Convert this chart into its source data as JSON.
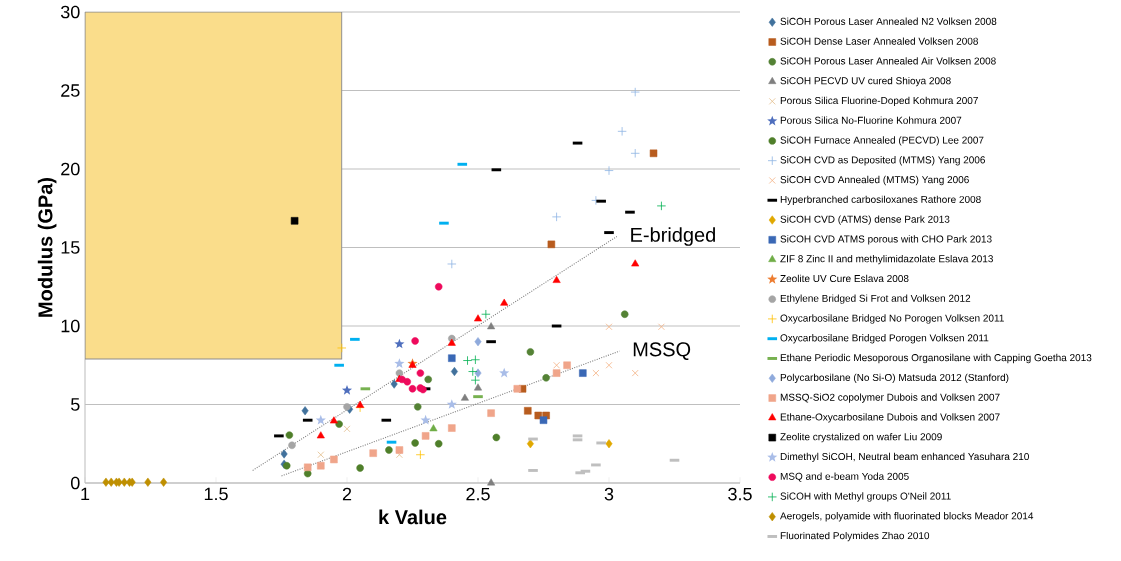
{
  "chart_data": {
    "type": "scatter",
    "xlabel": "k Value",
    "ylabel": "Modulus (GPa)",
    "xlim": [
      1,
      3.5
    ],
    "ylim": [
      0,
      30
    ],
    "xticks": [
      1,
      1.5,
      2,
      2.5,
      3,
      3.5
    ],
    "yticks": [
      0,
      5,
      10,
      15,
      20,
      25,
      30
    ],
    "grid": "y",
    "legend": "right",
    "annotations": [
      "E-bridged",
      "MSSQ"
    ],
    "series": [
      {
        "type": "bar",
        "color": "#fadd8b",
        "x": [
          1.49
        ],
        "values": [
          22.1
        ],
        "base": [
          7.9
        ]
      },
      {
        "name": "SiCOH Porous Laser Annealed N2 Volksen 2008",
        "color": "#41719c",
        "marker": "diamond",
        "x": [
          1.76,
          1.76,
          1.84,
          2.01,
          2.18,
          2.41
        ],
        "values": [
          1.2,
          1.85,
          4.6,
          4.7,
          6.3,
          7.1
        ]
      },
      {
        "name": "SiCOH Dense Laser Annealed Volksen 2008",
        "color": "#b85c1e",
        "marker": "square",
        "x": [
          2.67,
          2.69,
          2.73,
          2.76,
          2.78,
          3.17
        ],
        "values": [
          6.0,
          4.6,
          4.3,
          4.3,
          15.2,
          21
        ]
      },
      {
        "name": "SiCOH Porous Laser Annealed Air Volksen 2008",
        "color": "#548235",
        "marker": "circle",
        "x": [
          2.27,
          2.31,
          2.7,
          2.76,
          3.06
        ],
        "values": [
          4.85,
          6.6,
          8.35,
          6.7,
          10.75
        ]
      },
      {
        "name": "SiCOH PECVD UV cured Shioya 2008",
        "color": "#7f7f7f",
        "marker": "triangle",
        "x": [
          2.45,
          2.5,
          2.55,
          2.55
        ],
        "values": [
          5.4,
          6.05,
          9.95,
          0
        ]
      },
      {
        "name": "Porous Silica Fluorine-Doped Kohmura 2007",
        "color": "#e2bd8a",
        "marker": "cross",
        "x": [
          1.9,
          2.0,
          2.2
        ],
        "values": [
          1.8,
          3.45,
          1.8
        ]
      },
      {
        "name": "Porous Silica No-Fluorine Kohmura 2007",
        "color": "#4e6ebd",
        "marker": "star",
        "x": [
          2.0,
          2.2
        ],
        "values": [
          5.9,
          8.85
        ]
      },
      {
        "name": "SiCOH Furnace Annealed (PECVD) Lee 2007",
        "color": "#4f7f2a",
        "marker": "circle",
        "x": [
          1.77,
          1.78,
          1.85,
          1.97,
          2.05,
          2.16,
          2.26,
          2.35,
          2.57
        ],
        "values": [
          1.1,
          3.05,
          0.6,
          3.75,
          0.95,
          2.1,
          2.55,
          2.5,
          2.9
        ]
      },
      {
        "name": "SiCOH CVD as Deposited (MTMS) Yang 2006",
        "color": "#8eb4e3",
        "marker": "plus",
        "x": [
          2.4,
          2.8,
          2.95,
          3.0,
          3.05,
          3.1,
          3.1
        ],
        "values": [
          13.95,
          16.95,
          18.0,
          19.9,
          22.4,
          21.0,
          24.9
        ]
      },
      {
        "name": "SiCOH CVD Annealed (MTMS) Yang 2006",
        "color": "#f4b183",
        "marker": "cross",
        "x": [
          2.8,
          2.95,
          3.0,
          3.0,
          3.1,
          3.2
        ],
        "values": [
          7.5,
          7.0,
          7.5,
          9.95,
          7.0,
          9.95
        ]
      },
      {
        "name": "Hyperbranched carbosiloxanes Rathore 2008",
        "color": "#000000",
        "x": [
          1.74,
          1.85,
          2.15,
          2.3,
          2.55,
          2.57,
          2.8,
          2.88,
          2.97,
          3.0,
          3.08
        ],
        "values": [
          3.0,
          4.0,
          4.0,
          6.0,
          9.0,
          19.95,
          10.0,
          21.65,
          17.95,
          15.95,
          17.25
        ]
      },
      {
        "name": "SiCOH CVD (ATMS) dense Park 2013",
        "color": "#e0a800",
        "marker": "diamond",
        "x": [
          2.7,
          3.0
        ],
        "values": [
          2.5,
          2.5
        ]
      },
      {
        "name": "SiCOH CVD ATMS porous with CHO Park 2013",
        "color": "#3a68b5",
        "marker": "square",
        "x": [
          2.4,
          2.75,
          2.9
        ],
        "values": [
          7.95,
          4.0,
          7.0
        ]
      },
      {
        "name": "ZIF 8 Zinc II and methylimidazolate Eslava 2013",
        "color": "#70ad47",
        "marker": "triangle",
        "x": [
          2.33
        ],
        "values": [
          3.45
        ]
      },
      {
        "name": "Zeolite UV Cure Eslava 2008",
        "color": "#ed7d31",
        "marker": "star",
        "x": [
          2.25
        ],
        "values": [
          7.6
        ]
      },
      {
        "name": "Ethylene Bridged Si Frot and Volksen 2012",
        "color": "#a5a5a5",
        "marker": "circle",
        "x": [
          1.79,
          2.0,
          2.2,
          2.4
        ],
        "values": [
          2.4,
          4.85,
          7.0,
          9.2
        ]
      },
      {
        "name": "Oxycarbosilane Bridged No Porogen Volksen 2011",
        "color": "#ffc000",
        "marker": "plus",
        "x": [
          1.98,
          2.05,
          2.28
        ],
        "values": [
          8.6,
          4.8,
          1.8
        ]
      },
      {
        "name": "Oxycarbosilane Bridged Porogen Volksen 2011",
        "color": "#00b0f0",
        "x": [
          1.97,
          2.03,
          2.17,
          2.37,
          2.44
        ],
        "values": [
          7.5,
          9.15,
          2.6,
          16.55,
          20.3
        ]
      },
      {
        "name": "Ethane Periodic Mesoporous Organosilane with Capping Goetha 2013",
        "color": "#77b150",
        "x": [
          2.07,
          2.5
        ],
        "values": [
          6.0,
          5.5
        ]
      },
      {
        "name": "Polycarbosilane (No Si-O) Matsuda 2012 (Stanford)",
        "color": "#8faadc",
        "marker": "diamond",
        "x": [
          2.5,
          2.5
        ],
        "values": [
          9.0,
          7.0
        ]
      },
      {
        "name": "MSSQ-SiO2 copolymer Dubois and Volksen 2007",
        "color": "#f0a58a",
        "marker": "square",
        "x": [
          1.85,
          1.9,
          1.95,
          2.1,
          2.2,
          2.3,
          2.4,
          2.55,
          2.65,
          2.8,
          2.84
        ],
        "values": [
          1.0,
          1.1,
          1.5,
          1.9,
          2.1,
          3.0,
          3.5,
          4.45,
          6.0,
          7.0,
          7.5
        ]
      },
      {
        "name": "Ethane-Oxycarbosilane Dubois and Volksen 2007",
        "color": "#ff0000",
        "marker": "triangle",
        "x": [
          1.9,
          1.95,
          2.05,
          2.2,
          2.25,
          2.4,
          2.5,
          2.6,
          2.8,
          3.1
        ],
        "values": [
          3.0,
          3.95,
          4.95,
          6.6,
          7.5,
          8.9,
          10.45,
          11.45,
          12.9,
          13.95
        ]
      },
      {
        "name": "Zeolite crystalized on wafer Liu 2009",
        "color": "#000000",
        "marker": "square",
        "x": [
          1.8
        ],
        "values": [
          16.7
        ]
      },
      {
        "name": "Dimethyl SiCOH, Neutral beam enhanced Yasuhara 210",
        "color": "#a9bde8",
        "marker": "star",
        "x": [
          1.9,
          2.2,
          2.3,
          2.4,
          2.6
        ],
        "values": [
          4.0,
          7.6,
          4.0,
          5.0,
          7.0
        ]
      },
      {
        "name": "MSQ and e-beam Yoda 2005",
        "color": "#ee0a5c",
        "marker": "circle",
        "x": [
          2.21,
          2.23,
          2.25,
          2.28,
          2.29,
          2.28,
          2.26,
          2.35
        ],
        "values": [
          6.6,
          6.45,
          6.0,
          6.05,
          5.95,
          7.0,
          9.05,
          12.5
        ]
      },
      {
        "name": "SiCOH with Methyl groups O'Neil 2011",
        "color": "#00b050",
        "marker": "plus",
        "x": [
          2.46,
          2.48,
          2.49,
          2.49,
          2.53,
          3.2
        ],
        "values": [
          7.8,
          7.1,
          7.85,
          6.55,
          10.75,
          17.65
        ]
      },
      {
        "name": "Aerogels, polyamide with fluorinated blocks Meador 2014",
        "color": "#bf8f00",
        "marker": "diamond",
        "x": [
          1.08,
          1.1,
          1.12,
          1.13,
          1.15,
          1.17,
          1.18,
          1.24,
          1.3
        ],
        "values": [
          0.05,
          0.05,
          0.05,
          0.05,
          0.05,
          0.05,
          0.05,
          0.05,
          0.05
        ]
      },
      {
        "name": "Fluorinated Polymides Zhao 2010",
        "color": "#bfbfbf",
        "x": [
          2.71,
          2.71,
          2.88,
          2.88,
          2.89,
          2.91,
          2.95,
          2.97,
          3.25
        ],
        "values": [
          2.8,
          0.8,
          3.0,
          2.75,
          0.65,
          0.75,
          1.15,
          2.55,
          1.45
        ]
      },
      {
        "type": "line",
        "color": "#7f7f7f",
        "line_style": "dotted",
        "marker": "none",
        "x": [
          1.64,
          3.03
        ],
        "values": [
          0.8,
          15.7
        ]
      },
      {
        "type": "line",
        "color": "#7f7f7f",
        "line_style": "dotted",
        "marker": "none",
        "x": [
          1.75,
          3.04
        ],
        "values": [
          0.45,
          8.4
        ]
      }
    ]
  }
}
